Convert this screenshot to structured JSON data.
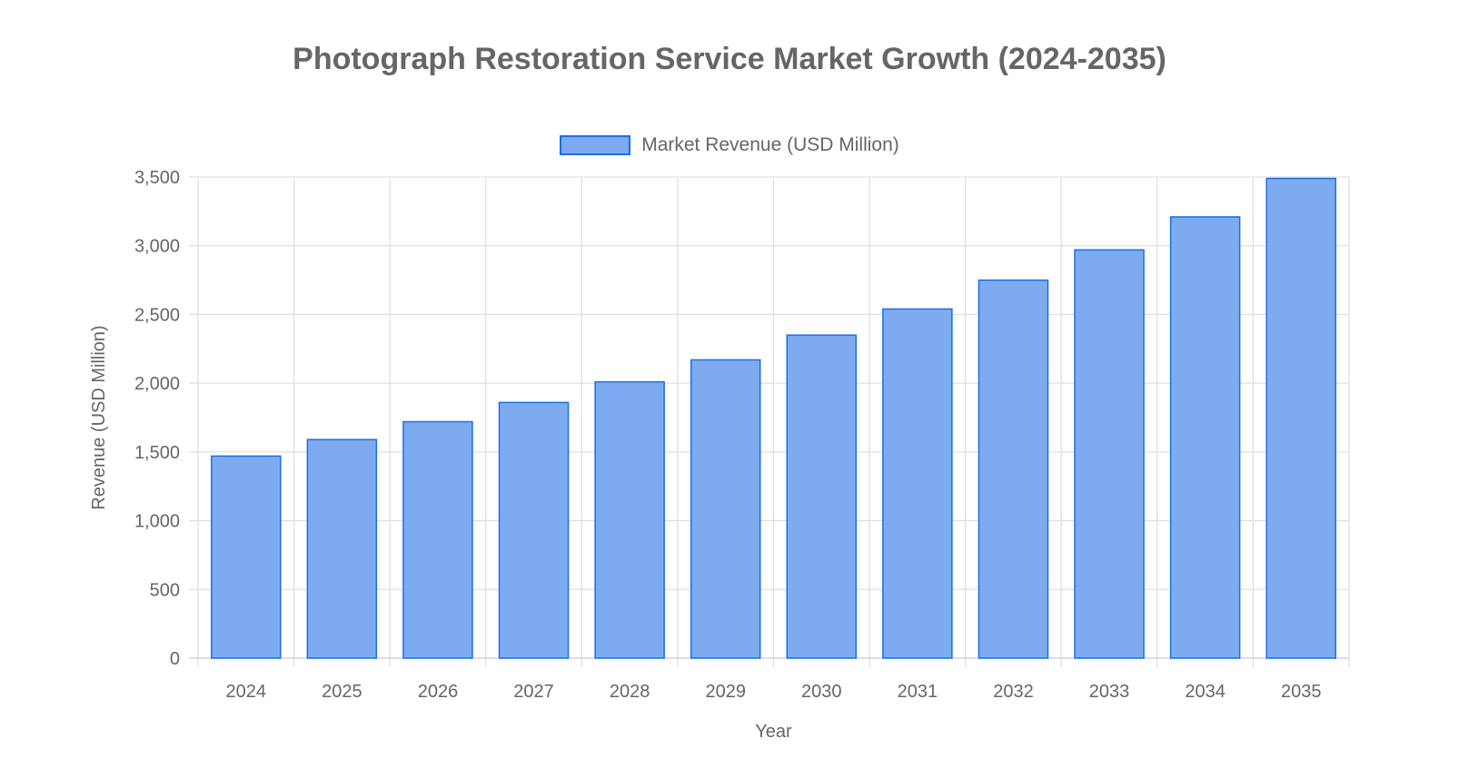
{
  "chart_data": {
    "type": "bar",
    "title": "Photograph Restoration Service Market Growth (2024-2035)",
    "xlabel": "Year",
    "ylabel": "Revenue (USD Million)",
    "categories": [
      "2024",
      "2025",
      "2026",
      "2027",
      "2028",
      "2029",
      "2030",
      "2031",
      "2032",
      "2033",
      "2034",
      "2035"
    ],
    "series": [
      {
        "name": "Market Revenue (USD Million)",
        "values": [
          1470,
          1590,
          1720,
          1860,
          2010,
          2170,
          2350,
          2540,
          2750,
          2970,
          3210,
          3490
        ]
      }
    ],
    "ylim": [
      0,
      3500
    ],
    "yticks": [
      "0",
      "500",
      "1,000",
      "1,500",
      "2,000",
      "2,500",
      "3,000",
      "3,500"
    ],
    "grid": true,
    "legend_position": "top",
    "colors": {
      "bar_fill": "#7eabf0",
      "bar_border": "#1a6fe8",
      "grid": "#e0e0e0",
      "text": "#666666"
    }
  }
}
